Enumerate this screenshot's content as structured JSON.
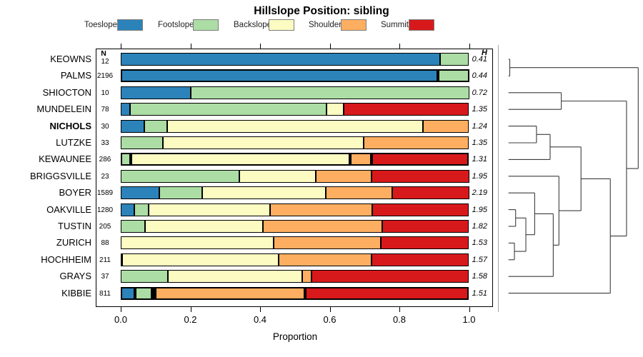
{
  "chart_data": {
    "type": "stacked-bar-horizontal-with-dendrogram",
    "title": "Hillslope Position: sibling",
    "xlabel": "Proportion",
    "n_header": "N",
    "h_header": "H",
    "x_ticks": [
      "0.0",
      "0.2",
      "0.4",
      "0.6",
      "0.8",
      "1.0"
    ],
    "x_tick_values": [
      0.0,
      0.2,
      0.4,
      0.6,
      0.8,
      1.0
    ],
    "xlim": [
      0.0,
      1.0
    ],
    "legend": [
      {
        "label": "Toeslope",
        "color": "#2B83BA"
      },
      {
        "label": "Footslope",
        "color": "#ABDDA4"
      },
      {
        "label": "Backslope",
        "color": "#FBFBC2"
      },
      {
        "label": "Shoulder",
        "color": "#FDAE61"
      },
      {
        "label": "Summit",
        "color": "#D7191C"
      }
    ],
    "rows": [
      {
        "name": "KEOWNS",
        "n": "12",
        "h": "0.41",
        "bold": false,
        "thick": false,
        "values": [
          0.917,
          0.083,
          0,
          0,
          0
        ]
      },
      {
        "name": "PALMS",
        "n": "2196",
        "h": "0.44",
        "bold": false,
        "thick": true,
        "values": [
          0.91,
          0.09,
          0,
          0,
          0
        ]
      },
      {
        "name": "SHIOCTON",
        "n": "10",
        "h": "0.72",
        "bold": false,
        "thick": false,
        "values": [
          0.2,
          0.8,
          0,
          0,
          0
        ]
      },
      {
        "name": "MUNDELEIN",
        "n": "78",
        "h": "1.35",
        "bold": false,
        "thick": false,
        "values": [
          0.026,
          0.564,
          0.051,
          0,
          0.359
        ]
      },
      {
        "name": "NICHOLS",
        "n": "30",
        "h": "1.24",
        "bold": true,
        "thick": false,
        "values": [
          0.067,
          0.067,
          0.733,
          0.133,
          0
        ]
      },
      {
        "name": "LUTZKE",
        "n": "33",
        "h": "1.35",
        "bold": false,
        "thick": false,
        "values": [
          0,
          0.121,
          0.576,
          0.303,
          0
        ]
      },
      {
        "name": "KEWAUNEE",
        "n": "286",
        "h": "1.31",
        "bold": false,
        "thick": true,
        "values": [
          0,
          0.028,
          0.631,
          0.06,
          0.281
        ]
      },
      {
        "name": "BRIGGSVILLE",
        "n": "23",
        "h": "1.95",
        "bold": false,
        "thick": false,
        "values": [
          0,
          0.34,
          0.22,
          0.16,
          0.28
        ]
      },
      {
        "name": "BOYER",
        "n": "1589",
        "h": "2.19",
        "bold": false,
        "thick": false,
        "values": [
          0.111,
          0.122,
          0.356,
          0.191,
          0.22
        ]
      },
      {
        "name": "OAKVILLE",
        "n": "1280",
        "h": "1.95",
        "bold": false,
        "thick": false,
        "values": [
          0.038,
          0.041,
          0.35,
          0.294,
          0.277
        ]
      },
      {
        "name": "TUSTIN",
        "n": "205",
        "h": "1.82",
        "bold": false,
        "thick": false,
        "values": [
          0,
          0.069,
          0.34,
          0.342,
          0.249
        ]
      },
      {
        "name": "ZURICH",
        "n": "88",
        "h": "1.53",
        "bold": false,
        "thick": false,
        "values": [
          0,
          0,
          0.438,
          0.308,
          0.254
        ]
      },
      {
        "name": "HOCHHEIM",
        "n": "211",
        "h": "1.57",
        "bold": false,
        "thick": false,
        "values": [
          0,
          0.005,
          0.448,
          0.266,
          0.281
        ]
      },
      {
        "name": "GRAYS",
        "n": "37",
        "h": "1.58",
        "bold": false,
        "thick": false,
        "values": [
          0,
          0.135,
          0.387,
          0.026,
          0.452
        ]
      },
      {
        "name": "KIBBIE",
        "n": "811",
        "h": "1.51",
        "bold": false,
        "thick": true,
        "values": [
          0.04,
          0.05,
          0.009,
          0.43,
          0.471
        ]
      }
    ],
    "dendrogram": {
      "leaf_order": [
        "KEOWNS",
        "PALMS",
        "SHIOCTON",
        "MUNDELEIN",
        "NICHOLS",
        "LUTZKE",
        "KEWAUNEE",
        "BRIGGSVILLE",
        "BOYER",
        "OAKVILLE",
        "TUSTIN",
        "ZURICH",
        "HOCHHEIM",
        "GRAYS",
        "KIBBIE"
      ],
      "merges": [
        {
          "children": [
            "L0",
            "L1"
          ],
          "height": 0.01
        },
        {
          "children": [
            "L2",
            "L3"
          ],
          "height": 0.407
        },
        {
          "children": [
            "L4",
            "L5"
          ],
          "height": 0.216
        },
        {
          "children": [
            "M2",
            "L6"
          ],
          "height": 0.321
        },
        {
          "children": [
            "L9",
            "L10"
          ],
          "height": 0.055
        },
        {
          "children": [
            "L11",
            "L12"
          ],
          "height": 0.046
        },
        {
          "children": [
            "M4",
            "M5"
          ],
          "height": 0.134
        },
        {
          "children": [
            "L8",
            "M6"
          ],
          "height": 0.202
        },
        {
          "children": [
            "M7",
            "L13"
          ],
          "height": 0.345
        },
        {
          "children": [
            "L7",
            "M8"
          ],
          "height": 0.389
        },
        {
          "children": [
            "M3",
            "M9"
          ],
          "height": 0.559
        },
        {
          "children": [
            "M10",
            "L14"
          ],
          "height": 0.785
        },
        {
          "children": [
            "M1",
            "M11"
          ],
          "height": 0.91
        },
        {
          "children": [
            "M0",
            "M12"
          ],
          "height": 1.0
        }
      ]
    }
  }
}
